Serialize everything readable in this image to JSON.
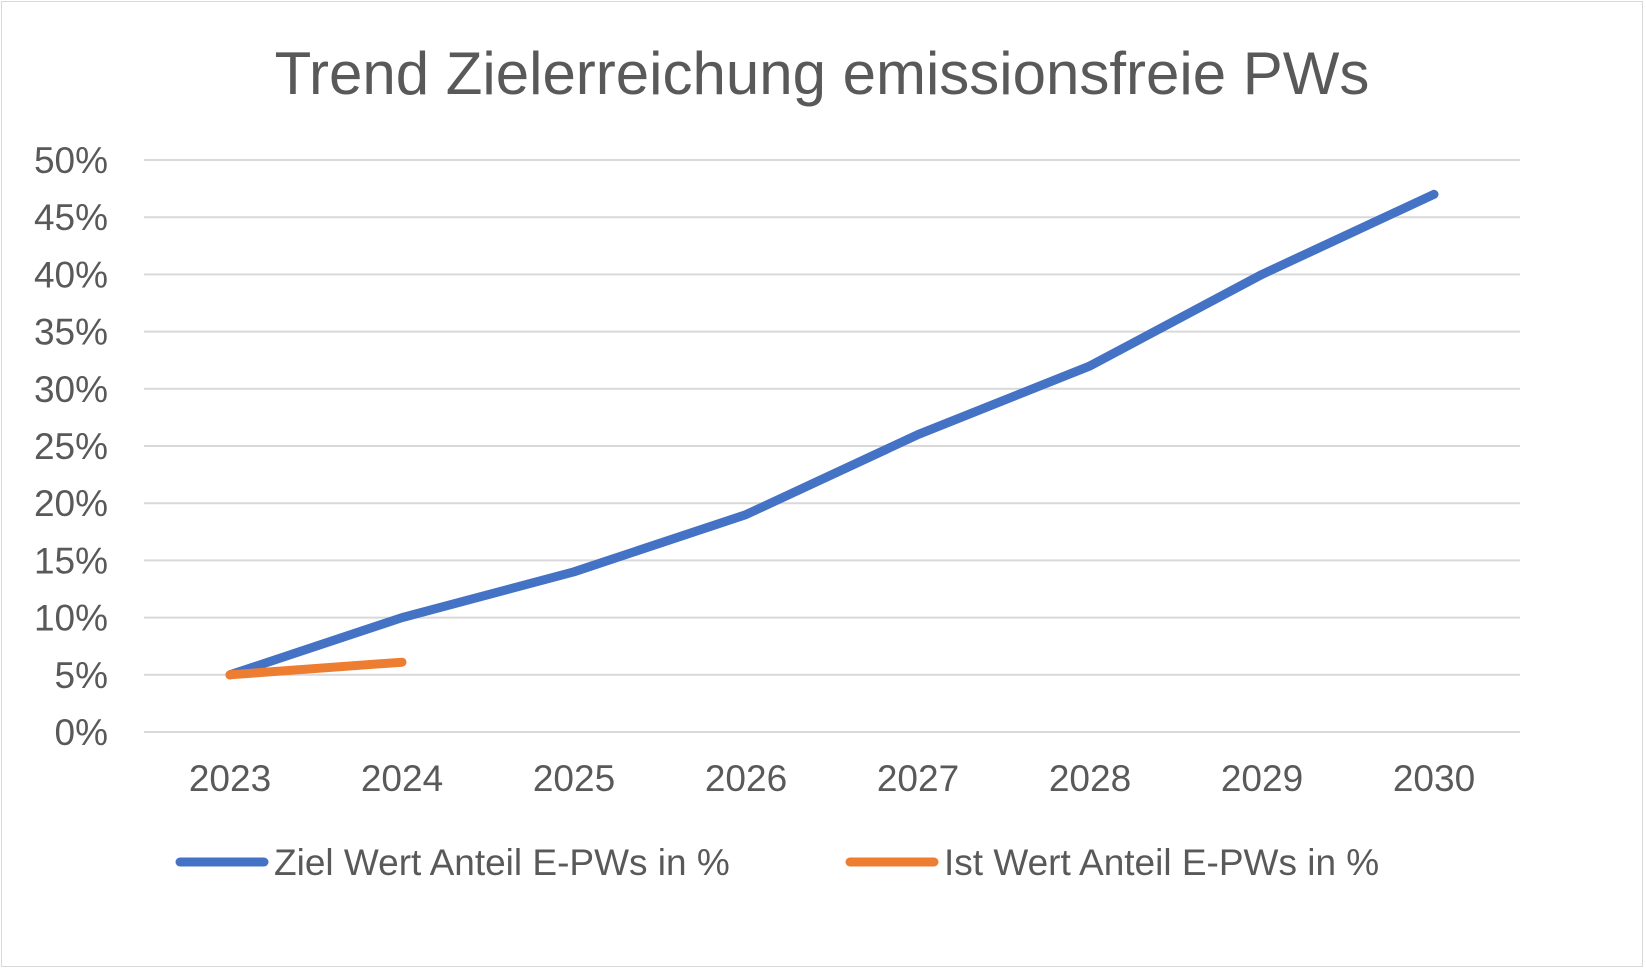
{
  "chart_data": {
    "type": "line",
    "title": "Trend Zielerreichung emissionsfreie PWs",
    "xlabel": "",
    "ylabel": "",
    "categories": [
      "2023",
      "2024",
      "2025",
      "2026",
      "2027",
      "2028",
      "2029",
      "2030"
    ],
    "ylim": [
      0,
      50
    ],
    "yticks": [
      "0%",
      "5%",
      "10%",
      "15%",
      "20%",
      "25%",
      "30%",
      "35%",
      "40%",
      "45%",
      "50%"
    ],
    "grid": true,
    "legend_position": "bottom",
    "series": [
      {
        "name": "Ziel Wert Anteil E-PWs in %",
        "color": "#4472c4",
        "values": [
          5,
          10,
          14,
          19,
          26,
          32,
          40,
          47
        ]
      },
      {
        "name": "Ist Wert Anteil E-PWs in %",
        "color": "#ed7d31",
        "values": [
          5,
          6.1,
          null,
          null,
          null,
          null,
          null,
          null
        ]
      }
    ]
  }
}
